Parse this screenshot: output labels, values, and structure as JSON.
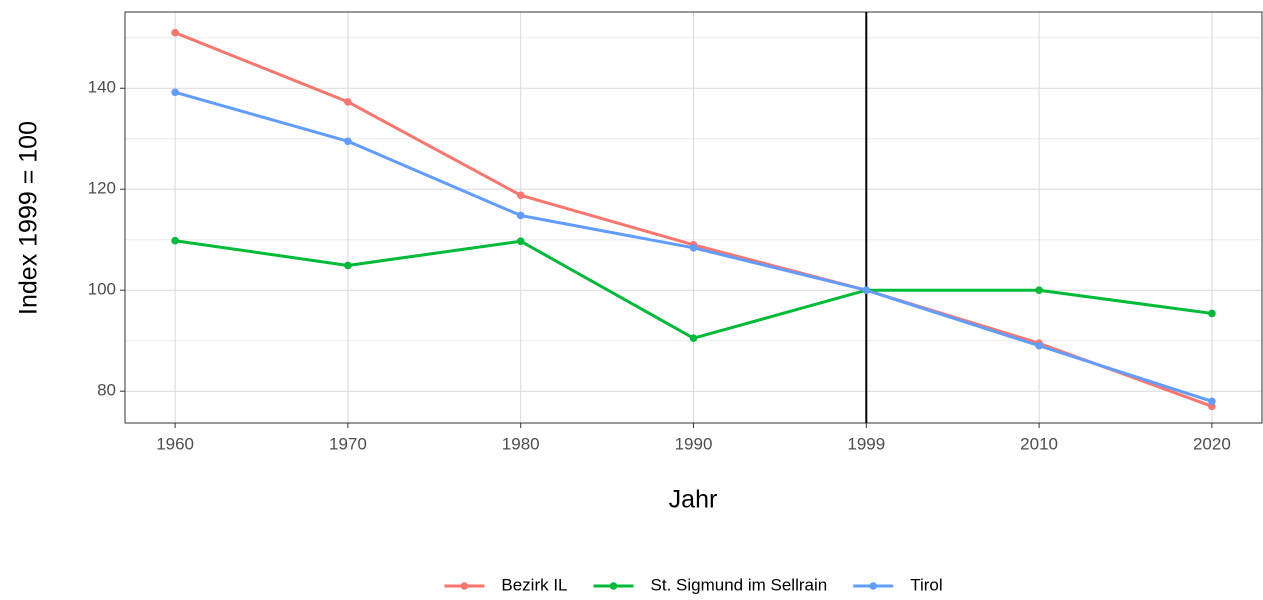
{
  "chart_data": {
    "type": "line",
    "x_label": "Jahr",
    "y_label": "Index 1999 = 100",
    "categories": [
      "1960",
      "1970",
      "1980",
      "1990",
      "1999",
      "2010",
      "2020"
    ],
    "series": [
      {
        "name": "Bezirk IL",
        "color": "#F8766D",
        "values": [
          151,
          137.3,
          118.8,
          109,
          100,
          89.5,
          77
        ]
      },
      {
        "name": "St. Sigmund im Sellrain",
        "color": "#00BA38",
        "values": [
          109.8,
          104.9,
          109.7,
          90.5,
          100,
          100,
          95.4
        ]
      },
      {
        "name": "Tirol",
        "color": "#619CFF",
        "values": [
          139.2,
          129.5,
          114.8,
          108.4,
          100,
          89,
          78
        ]
      }
    ],
    "ylim": [
      73.7,
      155.1
    ],
    "yticks": [
      80,
      100,
      120,
      140
    ],
    "grid": true,
    "vline_x": "1999",
    "legend": "bottom"
  }
}
